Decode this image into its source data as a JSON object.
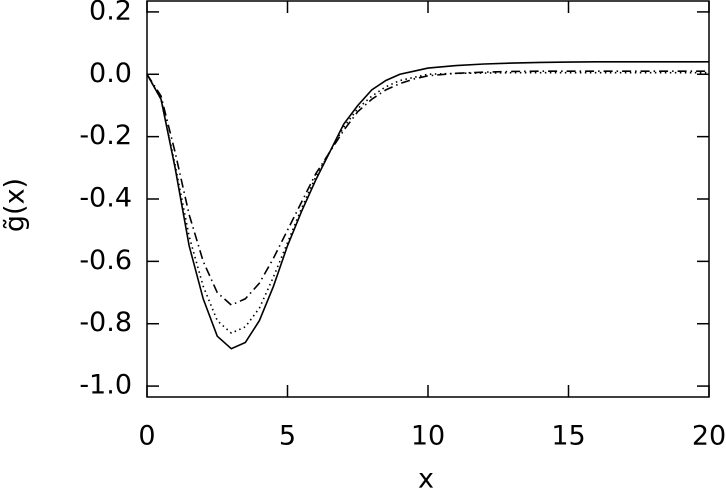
{
  "chart_data": {
    "type": "line",
    "x_label": "x",
    "y_label": "g̃(x)",
    "x": [
      0,
      0.5,
      1,
      1.5,
      2,
      2.5,
      3,
      3.5,
      4,
      4.5,
      5,
      5.5,
      6,
      6.5,
      7,
      7.5,
      8,
      8.5,
      9,
      9.5,
      10,
      11,
      12,
      13,
      14,
      15,
      16,
      17,
      18,
      19,
      20
    ],
    "series": [
      {
        "color": "#000000",
        "dash": "solid",
        "values": [
          0,
          -0.08,
          -0.3,
          -0.55,
          -0.72,
          -0.84,
          -0.88,
          -0.86,
          -0.79,
          -0.68,
          -0.55,
          -0.44,
          -0.34,
          -0.25,
          -0.16,
          -0.1,
          -0.05,
          -0.02,
          0,
          0.01,
          0.02,
          0.028,
          0.033,
          0.036,
          0.038,
          0.039,
          0.04,
          0.04,
          0.04,
          0.04,
          0.04
        ]
      },
      {
        "color": "#000000",
        "dash": "dotted",
        "values": [
          0,
          -0.08,
          -0.29,
          -0.52,
          -0.68,
          -0.79,
          -0.83,
          -0.81,
          -0.75,
          -0.65,
          -0.54,
          -0.43,
          -0.33,
          -0.25,
          -0.17,
          -0.11,
          -0.07,
          -0.04,
          -0.02,
          -0.01,
          0,
          0.003,
          0.004,
          0.005,
          0.005,
          0.005,
          0.005,
          0.005,
          0.005,
          0.005,
          0.005
        ]
      },
      {
        "color": "#000000",
        "dash": "dashdot",
        "values": [
          0,
          -0.07,
          -0.25,
          -0.45,
          -0.6,
          -0.7,
          -0.74,
          -0.72,
          -0.67,
          -0.59,
          -0.5,
          -0.41,
          -0.32,
          -0.25,
          -0.18,
          -0.12,
          -0.08,
          -0.05,
          -0.03,
          -0.015,
          -0.005,
          0.003,
          0.007,
          0.009,
          0.01,
          0.01,
          0.01,
          0.01,
          0.01,
          0.01,
          0.01
        ]
      }
    ],
    "xlim": [
      0,
      20
    ],
    "xticks": [
      0,
      5,
      10,
      15,
      20
    ],
    "ylim": [
      -1.035,
      0.235
    ],
    "yticks": [
      0.2,
      {
        "value": 0,
        "label": "0.0"
      },
      -0.2,
      -0.4,
      -0.6,
      -0.8,
      {
        "value": -1,
        "label": "-1.0"
      }
    ]
  }
}
